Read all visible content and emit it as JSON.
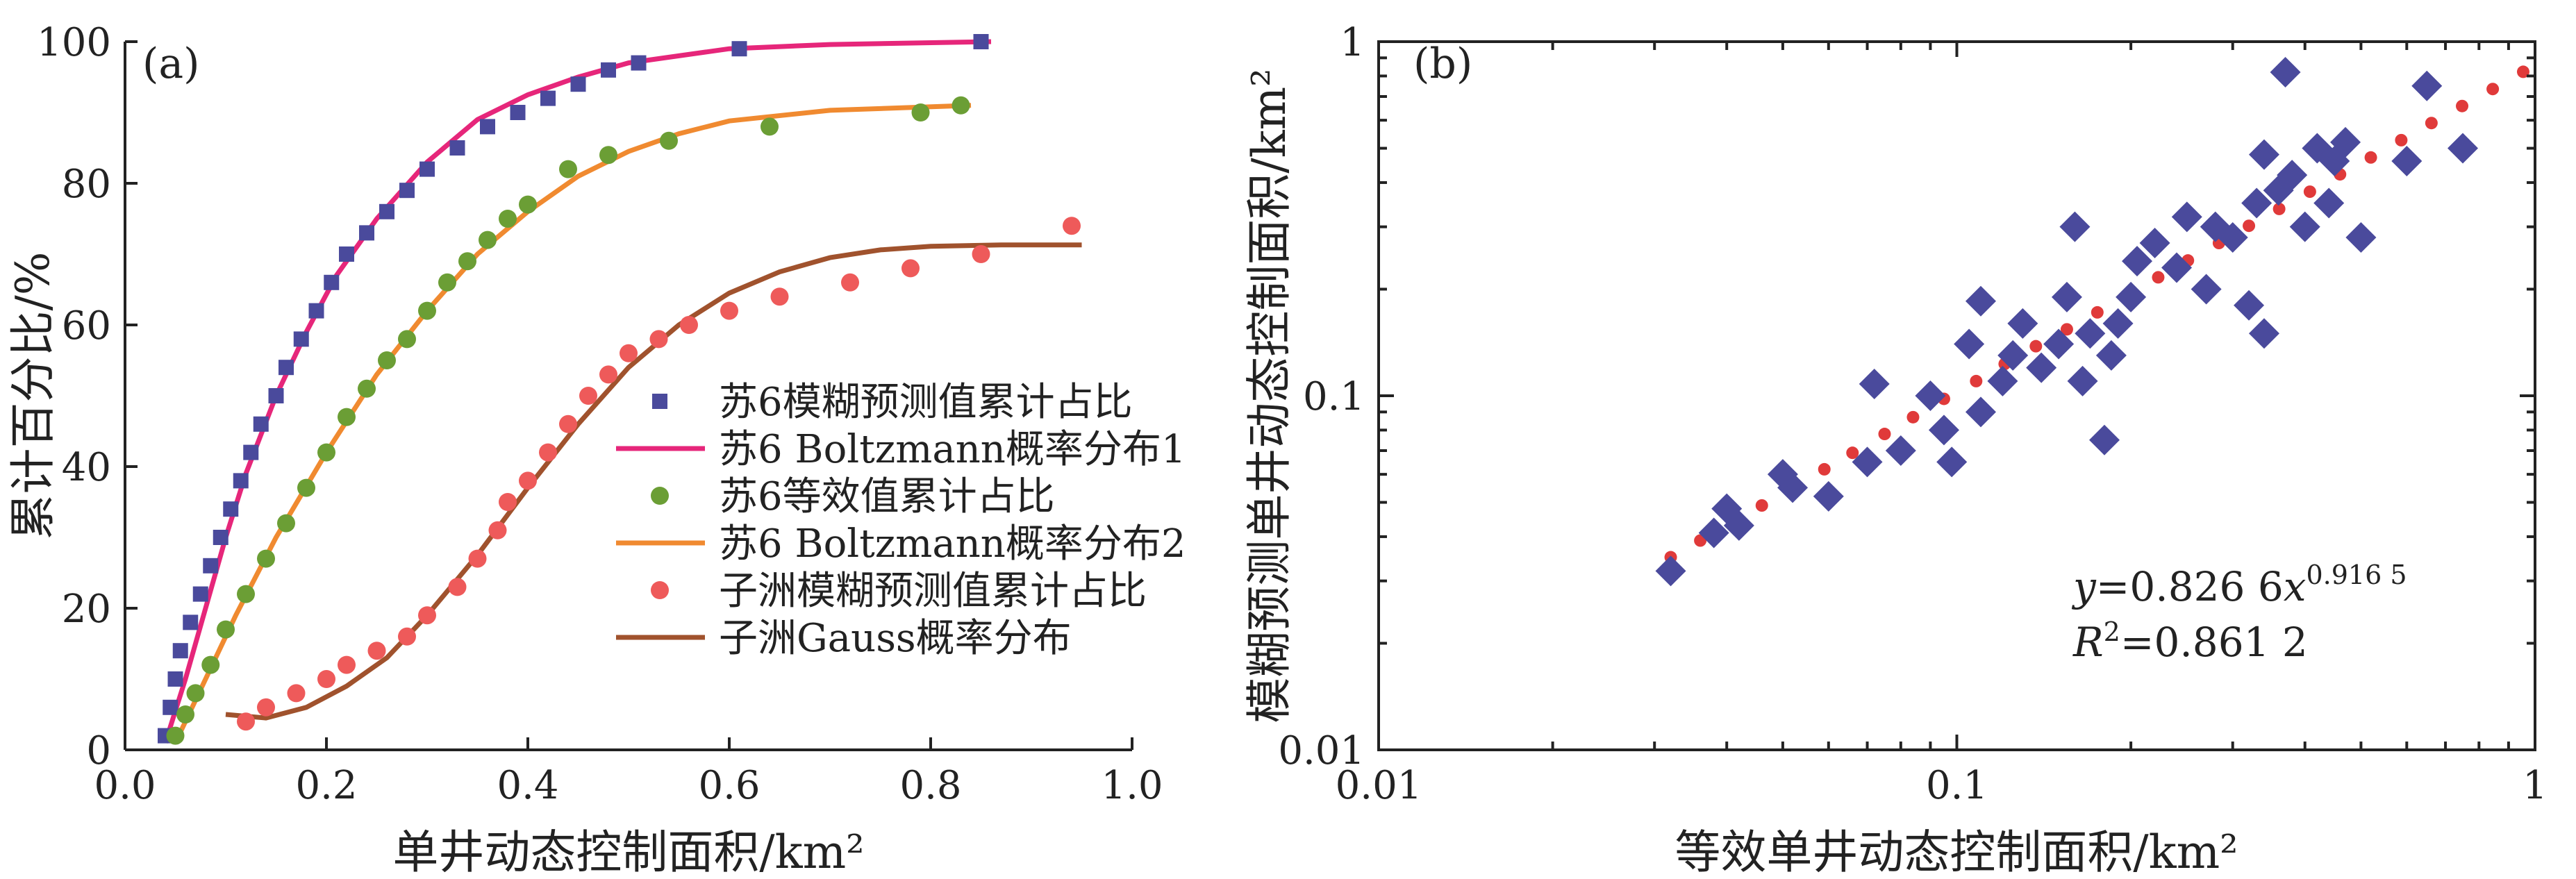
{
  "chart_data": [
    {
      "panel": "(a)",
      "type": "scatter",
      "xlabel": "单井动态控制面积/km²",
      "ylabel": "累计百分比/%",
      "xlim": [
        0.0,
        1.0
      ],
      "ylim": [
        0,
        100
      ],
      "xticks": [
        "0.0",
        "0.2",
        "0.4",
        "0.6",
        "0.8",
        "1.0"
      ],
      "yticks": [
        "0",
        "20",
        "40",
        "60",
        "80",
        "100"
      ],
      "grid": false,
      "legend_position": "bottom-right",
      "series": [
        {
          "name": "苏6模糊预测值累计占比",
          "kind": "points",
          "marker": "square",
          "color": "#4a4a9c",
          "points": [
            [
              0.04,
              2
            ],
            [
              0.045,
              6
            ],
            [
              0.05,
              10
            ],
            [
              0.055,
              14
            ],
            [
              0.065,
              18
            ],
            [
              0.075,
              22
            ],
            [
              0.085,
              26
            ],
            [
              0.095,
              30
            ],
            [
              0.105,
              34
            ],
            [
              0.115,
              38
            ],
            [
              0.125,
              42
            ],
            [
              0.135,
              46
            ],
            [
              0.15,
              50
            ],
            [
              0.16,
              54
            ],
            [
              0.175,
              58
            ],
            [
              0.19,
              62
            ],
            [
              0.205,
              66
            ],
            [
              0.22,
              70
            ],
            [
              0.24,
              73
            ],
            [
              0.26,
              76
            ],
            [
              0.28,
              79
            ],
            [
              0.3,
              82
            ],
            [
              0.33,
              85
            ],
            [
              0.36,
              88
            ],
            [
              0.39,
              90
            ],
            [
              0.42,
              92
            ],
            [
              0.45,
              94
            ],
            [
              0.48,
              96
            ],
            [
              0.51,
              97
            ],
            [
              0.61,
              99
            ],
            [
              0.85,
              100
            ]
          ]
        },
        {
          "name": "苏6 Boltzmann概率分布1",
          "kind": "curve",
          "color": "#e6267a",
          "points": [
            [
              0.04,
              1
            ],
            [
              0.06,
              10
            ],
            [
              0.08,
              20
            ],
            [
              0.1,
              30
            ],
            [
              0.12,
              39
            ],
            [
              0.15,
              50
            ],
            [
              0.18,
              59
            ],
            [
              0.21,
              67
            ],
            [
              0.25,
              75
            ],
            [
              0.3,
              83
            ],
            [
              0.35,
              89
            ],
            [
              0.4,
              92.5
            ],
            [
              0.45,
              95
            ],
            [
              0.5,
              97
            ],
            [
              0.55,
              98
            ],
            [
              0.6,
              99
            ],
            [
              0.7,
              99.6
            ],
            [
              0.86,
              100
            ]
          ]
        },
        {
          "name": "苏6等效值累计占比",
          "kind": "points",
          "marker": "circle",
          "color": "#6b9e35",
          "points": [
            [
              0.05,
              2
            ],
            [
              0.06,
              5
            ],
            [
              0.07,
              8
            ],
            [
              0.085,
              12
            ],
            [
              0.1,
              17
            ],
            [
              0.12,
              22
            ],
            [
              0.14,
              27
            ],
            [
              0.16,
              32
            ],
            [
              0.18,
              37
            ],
            [
              0.2,
              42
            ],
            [
              0.22,
              47
            ],
            [
              0.24,
              51
            ],
            [
              0.26,
              55
            ],
            [
              0.28,
              58
            ],
            [
              0.3,
              62
            ],
            [
              0.32,
              66
            ],
            [
              0.34,
              69
            ],
            [
              0.36,
              72
            ],
            [
              0.38,
              75
            ],
            [
              0.4,
              77
            ],
            [
              0.44,
              82
            ],
            [
              0.48,
              84
            ],
            [
              0.54,
              86
            ],
            [
              0.64,
              88
            ],
            [
              0.79,
              90
            ],
            [
              0.83,
              91
            ]
          ]
        },
        {
          "name": "苏6 Boltzmann概率分布2",
          "kind": "curve",
          "color": "#f08a30",
          "points": [
            [
              0.05,
              1
            ],
            [
              0.08,
              10
            ],
            [
              0.11,
              19
            ],
            [
              0.15,
              30
            ],
            [
              0.2,
              42
            ],
            [
              0.25,
              53
            ],
            [
              0.3,
              62
            ],
            [
              0.35,
              70
            ],
            [
              0.4,
              76
            ],
            [
              0.45,
              81
            ],
            [
              0.5,
              84.5
            ],
            [
              0.55,
              87
            ],
            [
              0.6,
              88.8
            ],
            [
              0.7,
              90.3
            ],
            [
              0.84,
              91
            ]
          ]
        },
        {
          "name": "子洲模糊预测值累计占比",
          "kind": "points",
          "marker": "circle",
          "color": "#ee5a5a",
          "points": [
            [
              0.12,
              4
            ],
            [
              0.14,
              6
            ],
            [
              0.17,
              8
            ],
            [
              0.2,
              10
            ],
            [
              0.22,
              12
            ],
            [
              0.25,
              14
            ],
            [
              0.28,
              16
            ],
            [
              0.3,
              19
            ],
            [
              0.33,
              23
            ],
            [
              0.35,
              27
            ],
            [
              0.37,
              31
            ],
            [
              0.38,
              35
            ],
            [
              0.4,
              38
            ],
            [
              0.42,
              42
            ],
            [
              0.44,
              46
            ],
            [
              0.46,
              50
            ],
            [
              0.48,
              53
            ],
            [
              0.5,
              56
            ],
            [
              0.53,
              58
            ],
            [
              0.56,
              60
            ],
            [
              0.6,
              62
            ],
            [
              0.65,
              64
            ],
            [
              0.72,
              66
            ],
            [
              0.78,
              68
            ],
            [
              0.85,
              70
            ],
            [
              0.94,
              74
            ]
          ]
        },
        {
          "name": "子洲Gauss概率分布",
          "kind": "curve",
          "color": "#a0522d",
          "points": [
            [
              0.1,
              5
            ],
            [
              0.14,
              4.5
            ],
            [
              0.18,
              6
            ],
            [
              0.22,
              9
            ],
            [
              0.26,
              13
            ],
            [
              0.3,
              19
            ],
            [
              0.35,
              27.5
            ],
            [
              0.4,
              37
            ],
            [
              0.45,
              46
            ],
            [
              0.5,
              54
            ],
            [
              0.55,
              60
            ],
            [
              0.6,
              64.5
            ],
            [
              0.65,
              67.5
            ],
            [
              0.7,
              69.5
            ],
            [
              0.75,
              70.6
            ],
            [
              0.8,
              71.1
            ],
            [
              0.87,
              71.3
            ],
            [
              0.95,
              71.3
            ]
          ]
        }
      ]
    },
    {
      "panel": "(b)",
      "type": "scatter",
      "xlabel": "等效单井动态控制面积/km²",
      "ylabel": "模糊预测单井动态控制面积/km²",
      "xscale": "log",
      "yscale": "log",
      "xlim": [
        0.01,
        1
      ],
      "ylim": [
        0.01,
        1
      ],
      "xticks": [
        "0.01",
        "0.1",
        "1"
      ],
      "yticks": [
        "0.01",
        "0.1",
        "1"
      ],
      "grid": false,
      "equation": {
        "y": "y",
        "eq": "=0.826 6",
        "x": "x",
        "exp": "0.916 5"
      },
      "r2": {
        "r": "R",
        "sup": "2",
        "val": "=0.861 2"
      },
      "series": [
        {
          "kind": "points",
          "marker": "diamond",
          "color": "#4a4a9c",
          "points": [
            [
              0.032,
              0.032
            ],
            [
              0.038,
              0.041
            ],
            [
              0.04,
              0.048
            ],
            [
              0.042,
              0.043
            ],
            [
              0.05,
              0.06
            ],
            [
              0.052,
              0.055
            ],
            [
              0.06,
              0.052
            ],
            [
              0.07,
              0.065
            ],
            [
              0.072,
              0.108
            ],
            [
              0.08,
              0.07
            ],
            [
              0.09,
              0.1
            ],
            [
              0.095,
              0.08
            ],
            [
              0.098,
              0.065
            ],
            [
              0.105,
              0.14
            ],
            [
              0.11,
              0.09
            ],
            [
              0.11,
              0.185
            ],
            [
              0.12,
              0.11
            ],
            [
              0.125,
              0.13
            ],
            [
              0.13,
              0.16
            ],
            [
              0.14,
              0.12
            ],
            [
              0.15,
              0.14
            ],
            [
              0.155,
              0.19
            ],
            [
              0.16,
              0.3
            ],
            [
              0.165,
              0.11
            ],
            [
              0.17,
              0.15
            ],
            [
              0.18,
              0.075
            ],
            [
              0.185,
              0.13
            ],
            [
              0.19,
              0.16
            ],
            [
              0.2,
              0.19
            ],
            [
              0.205,
              0.24
            ],
            [
              0.22,
              0.27
            ],
            [
              0.24,
              0.23
            ],
            [
              0.25,
              0.32
            ],
            [
              0.27,
              0.2
            ],
            [
              0.28,
              0.3
            ],
            [
              0.3,
              0.28
            ],
            [
              0.32,
              0.18
            ],
            [
              0.33,
              0.35
            ],
            [
              0.34,
              0.15
            ],
            [
              0.34,
              0.48
            ],
            [
              0.36,
              0.38
            ],
            [
              0.38,
              0.42
            ],
            [
              0.4,
              0.3
            ],
            [
              0.42,
              0.5
            ],
            [
              0.44,
              0.35
            ],
            [
              0.45,
              0.46
            ],
            [
              0.47,
              0.52
            ],
            [
              0.5,
              0.28
            ],
            [
              0.6,
              0.46
            ],
            [
              0.65,
              0.75
            ],
            [
              0.75,
              0.5
            ],
            [
              0.37,
              0.82
            ]
          ]
        },
        {
          "kind": "fit",
          "marker": "dot",
          "color": "#e03a3a",
          "points": [
            [
              0.032,
              0.035
            ],
            [
              0.036,
              0.039
            ],
            [
              0.041,
              0.044
            ],
            [
              0.046,
              0.049
            ],
            [
              0.052,
              0.055
            ],
            [
              0.059,
              0.062
            ],
            [
              0.066,
              0.069
            ],
            [
              0.075,
              0.078
            ],
            [
              0.084,
              0.087
            ],
            [
              0.095,
              0.098
            ],
            [
              0.108,
              0.11
            ],
            [
              0.121,
              0.123
            ],
            [
              0.137,
              0.138
            ],
            [
              0.155,
              0.154
            ],
            [
              0.175,
              0.172
            ],
            [
              0.197,
              0.193
            ],
            [
              0.223,
              0.216
            ],
            [
              0.251,
              0.241
            ],
            [
              0.284,
              0.27
            ],
            [
              0.32,
              0.302
            ],
            [
              0.361,
              0.337
            ],
            [
              0.408,
              0.377
            ],
            [
              0.46,
              0.422
            ],
            [
              0.52,
              0.471
            ],
            [
              0.587,
              0.527
            ],
            [
              0.662,
              0.589
            ],
            [
              0.748,
              0.658
            ],
            [
              0.845,
              0.735
            ],
            [
              0.954,
              0.822
            ]
          ]
        }
      ]
    }
  ]
}
